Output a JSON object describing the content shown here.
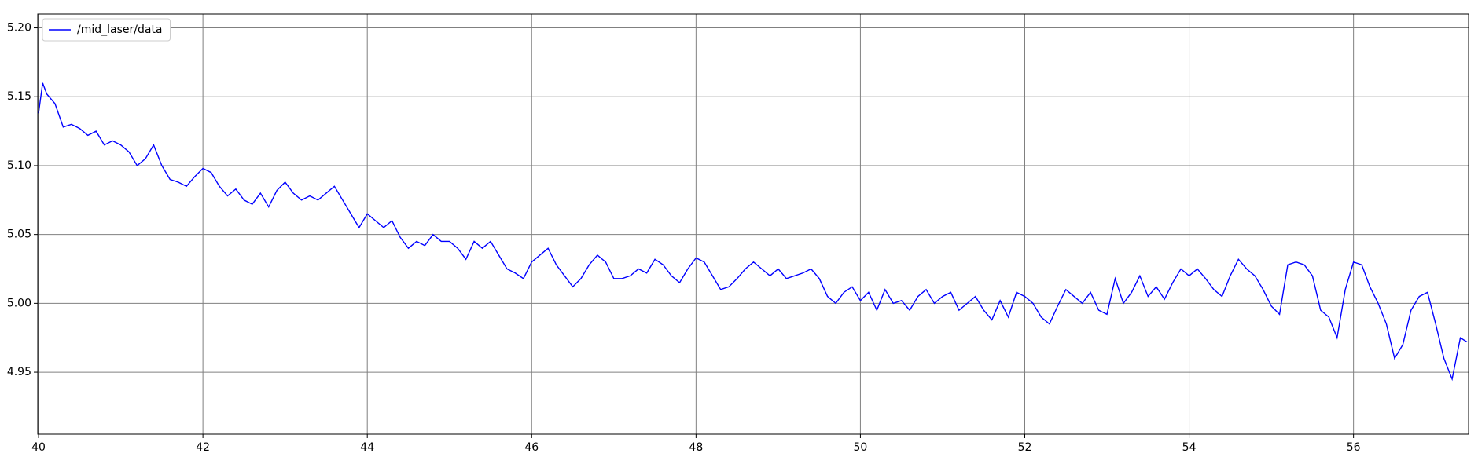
{
  "chart_data": {
    "type": "line",
    "x": [
      40.0,
      40.05,
      40.1,
      40.2,
      40.3,
      40.4,
      40.5,
      40.6,
      40.7,
      40.8,
      40.9,
      41.0,
      41.1,
      41.2,
      41.3,
      41.4,
      41.5,
      41.6,
      41.7,
      41.8,
      41.9,
      42.0,
      42.1,
      42.2,
      42.3,
      42.4,
      42.5,
      42.6,
      42.7,
      42.8,
      42.9,
      43.0,
      43.1,
      43.2,
      43.3,
      43.4,
      43.5,
      43.6,
      43.7,
      43.8,
      43.9,
      44.0,
      44.1,
      44.2,
      44.3,
      44.4,
      44.5,
      44.6,
      44.7,
      44.8,
      44.9,
      45.0,
      45.1,
      45.2,
      45.3,
      45.4,
      45.5,
      45.6,
      45.7,
      45.8,
      45.9,
      46.0,
      46.1,
      46.2,
      46.3,
      46.4,
      46.5,
      46.6,
      46.7,
      46.8,
      46.9,
      47.0,
      47.1,
      47.2,
      47.3,
      47.4,
      47.5,
      47.6,
      47.7,
      47.8,
      47.9,
      48.0,
      48.1,
      48.2,
      48.3,
      48.4,
      48.5,
      48.6,
      48.7,
      48.8,
      48.9,
      49.0,
      49.1,
      49.2,
      49.3,
      49.4,
      49.5,
      49.6,
      49.7,
      49.8,
      49.9,
      50.0,
      50.1,
      50.2,
      50.3,
      50.4,
      50.5,
      50.6,
      50.7,
      50.8,
      50.9,
      51.0,
      51.1,
      51.2,
      51.3,
      51.4,
      51.5,
      51.6,
      51.7,
      51.8,
      51.9,
      52.0,
      52.1,
      52.2,
      52.3,
      52.4,
      52.5,
      52.6,
      52.7,
      52.8,
      52.9,
      53.0,
      53.1,
      53.2,
      53.3,
      53.4,
      53.5,
      53.6,
      53.7,
      53.8,
      53.9,
      54.0,
      54.1,
      54.2,
      54.3,
      54.4,
      54.5,
      54.6,
      54.7,
      54.8,
      54.9,
      55.0,
      55.1,
      55.2,
      55.3,
      55.4,
      55.5,
      55.6,
      55.7,
      55.8,
      55.9,
      56.0,
      56.1,
      56.2,
      56.3,
      56.4,
      56.5,
      56.6,
      56.7,
      56.8,
      56.9,
      57.0,
      57.1,
      57.2,
      57.3,
      57.38
    ],
    "series": [
      {
        "name": "/mid_laser/data",
        "color": "#0000ff",
        "values": [
          5.138,
          5.16,
          5.152,
          5.145,
          5.128,
          5.13,
          5.127,
          5.122,
          5.125,
          5.115,
          5.118,
          5.115,
          5.11,
          5.1,
          5.105,
          5.115,
          5.1,
          5.09,
          5.088,
          5.085,
          5.092,
          5.098,
          5.095,
          5.085,
          5.078,
          5.083,
          5.075,
          5.072,
          5.08,
          5.07,
          5.082,
          5.088,
          5.08,
          5.075,
          5.078,
          5.075,
          5.08,
          5.085,
          5.075,
          5.065,
          5.055,
          5.065,
          5.06,
          5.055,
          5.06,
          5.048,
          5.04,
          5.045,
          5.042,
          5.05,
          5.045,
          5.045,
          5.04,
          5.032,
          5.045,
          5.04,
          5.045,
          5.035,
          5.025,
          5.022,
          5.018,
          5.03,
          5.035,
          5.04,
          5.028,
          5.02,
          5.012,
          5.018,
          5.028,
          5.035,
          5.03,
          5.018,
          5.018,
          5.02,
          5.025,
          5.022,
          5.032,
          5.028,
          5.02,
          5.015,
          5.025,
          5.033,
          5.03,
          5.02,
          5.01,
          5.012,
          5.018,
          5.025,
          5.03,
          5.025,
          5.02,
          5.025,
          5.018,
          5.02,
          5.022,
          5.025,
          5.018,
          5.005,
          5.0,
          5.008,
          5.012,
          5.002,
          5.008,
          4.995,
          5.01,
          5.0,
          5.002,
          4.995,
          5.005,
          5.01,
          5.0,
          5.005,
          5.008,
          4.995,
          5.0,
          5.005,
          4.995,
          4.988,
          5.002,
          4.99,
          5.008,
          5.005,
          5.0,
          4.99,
          4.985,
          4.998,
          5.01,
          5.005,
          5.0,
          5.008,
          4.995,
          4.992,
          5.018,
          5.0,
          5.008,
          5.02,
          5.005,
          5.012,
          5.003,
          5.015,
          5.025,
          5.02,
          5.025,
          5.018,
          5.01,
          5.005,
          5.02,
          5.032,
          5.025,
          5.02,
          5.01,
          4.998,
          4.992,
          5.028,
          5.03,
          5.028,
          5.02,
          4.995,
          4.99,
          4.975,
          5.01,
          5.03,
          5.028,
          5.012,
          5.0,
          4.985,
          4.96,
          4.97,
          4.995,
          5.005,
          5.008,
          4.985,
          4.96,
          4.945,
          4.975,
          4.972
        ]
      }
    ],
    "xlim": [
      39.99,
      57.4
    ],
    "xticks": [
      40,
      42,
      44,
      46,
      48,
      50,
      52,
      54,
      56
    ],
    "ylim": [
      4.905,
      5.21
    ],
    "yticks": [
      4.95,
      {
        "value": 5.0,
        "label": "5.00"
      },
      5.05,
      {
        "value": 5.1,
        "label": "5.10"
      },
      5.15,
      {
        "value": 5.2,
        "label": "5.20"
      }
    ],
    "grid": true,
    "legend": "upper-left"
  }
}
